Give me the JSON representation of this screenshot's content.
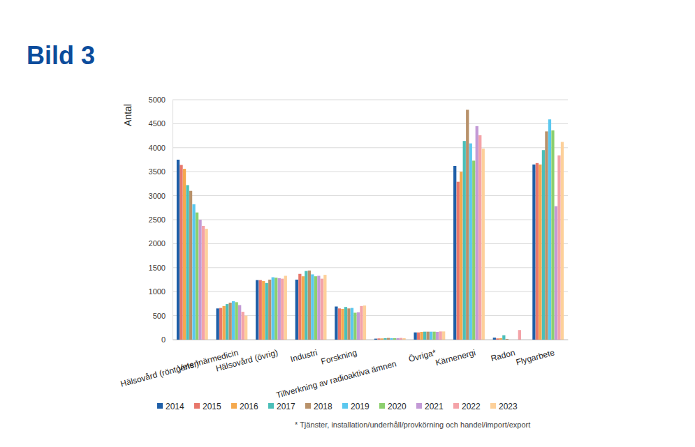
{
  "chart_data": {
    "type": "bar",
    "title": "Bild 3",
    "y_label": "Antal",
    "annotations": [
      "* Tjänster, installation/underhåll/provkörning och handel/import/export"
    ],
    "categories": [
      "Hälsovård (röntgens.)",
      "Veterinärmedicin",
      "Hälsovård (övrig)",
      "Industri",
      "Forskning",
      "Tillverkning av radioaktiva ämnen",
      "Övriga*",
      "Kärnenergi",
      "Radon",
      "Flygarbete"
    ],
    "series": [
      {
        "name": "2014",
        "color": "#1f5fa8",
        "values": [
          3750,
          650,
          1240,
          1250,
          690,
          20,
          150,
          3620,
          40,
          3650
        ]
      },
      {
        "name": "2015",
        "color": "#e8776b",
        "values": [
          3640,
          660,
          1240,
          1370,
          650,
          25,
          150,
          3290,
          25,
          3680
        ]
      },
      {
        "name": "2016",
        "color": "#f5a94e",
        "values": [
          3560,
          700,
          1220,
          1320,
          640,
          25,
          160,
          3500,
          30,
          3650
        ]
      },
      {
        "name": "2017",
        "color": "#4bbfb8",
        "values": [
          3220,
          740,
          1180,
          1430,
          680,
          30,
          165,
          4140,
          90,
          3950
        ]
      },
      {
        "name": "2018",
        "color": "#b8916a",
        "values": [
          3100,
          770,
          1250,
          1440,
          650,
          35,
          165,
          4790,
          15,
          4340
        ]
      },
      {
        "name": "2019",
        "color": "#5bc8ef",
        "values": [
          2820,
          800,
          1300,
          1360,
          660,
          30,
          165,
          4090,
          0,
          4590
        ]
      },
      {
        "name": "2020",
        "color": "#8ccf6e",
        "values": [
          2650,
          780,
          1290,
          1320,
          560,
          30,
          165,
          3730,
          0,
          4360
        ]
      },
      {
        "name": "2021",
        "color": "#c39ad6",
        "values": [
          2500,
          720,
          1280,
          1330,
          570,
          30,
          160,
          4450,
          0,
          2780
        ]
      },
      {
        "name": "2022",
        "color": "#f4a3a8",
        "values": [
          2370,
          580,
          1270,
          1270,
          700,
          35,
          170,
          4260,
          200,
          3840
        ]
      },
      {
        "name": "2023",
        "color": "#fdd09a",
        "values": [
          2310,
          500,
          1330,
          1350,
          710,
          30,
          170,
          3980,
          0,
          4120
        ]
      }
    ],
    "ylim": [
      0,
      5000
    ],
    "yticks": [
      0,
      500,
      1000,
      1500,
      2000,
      2500,
      3000,
      3500,
      4000,
      4500,
      5000
    ],
    "grid": true,
    "legend": "bottom"
  }
}
